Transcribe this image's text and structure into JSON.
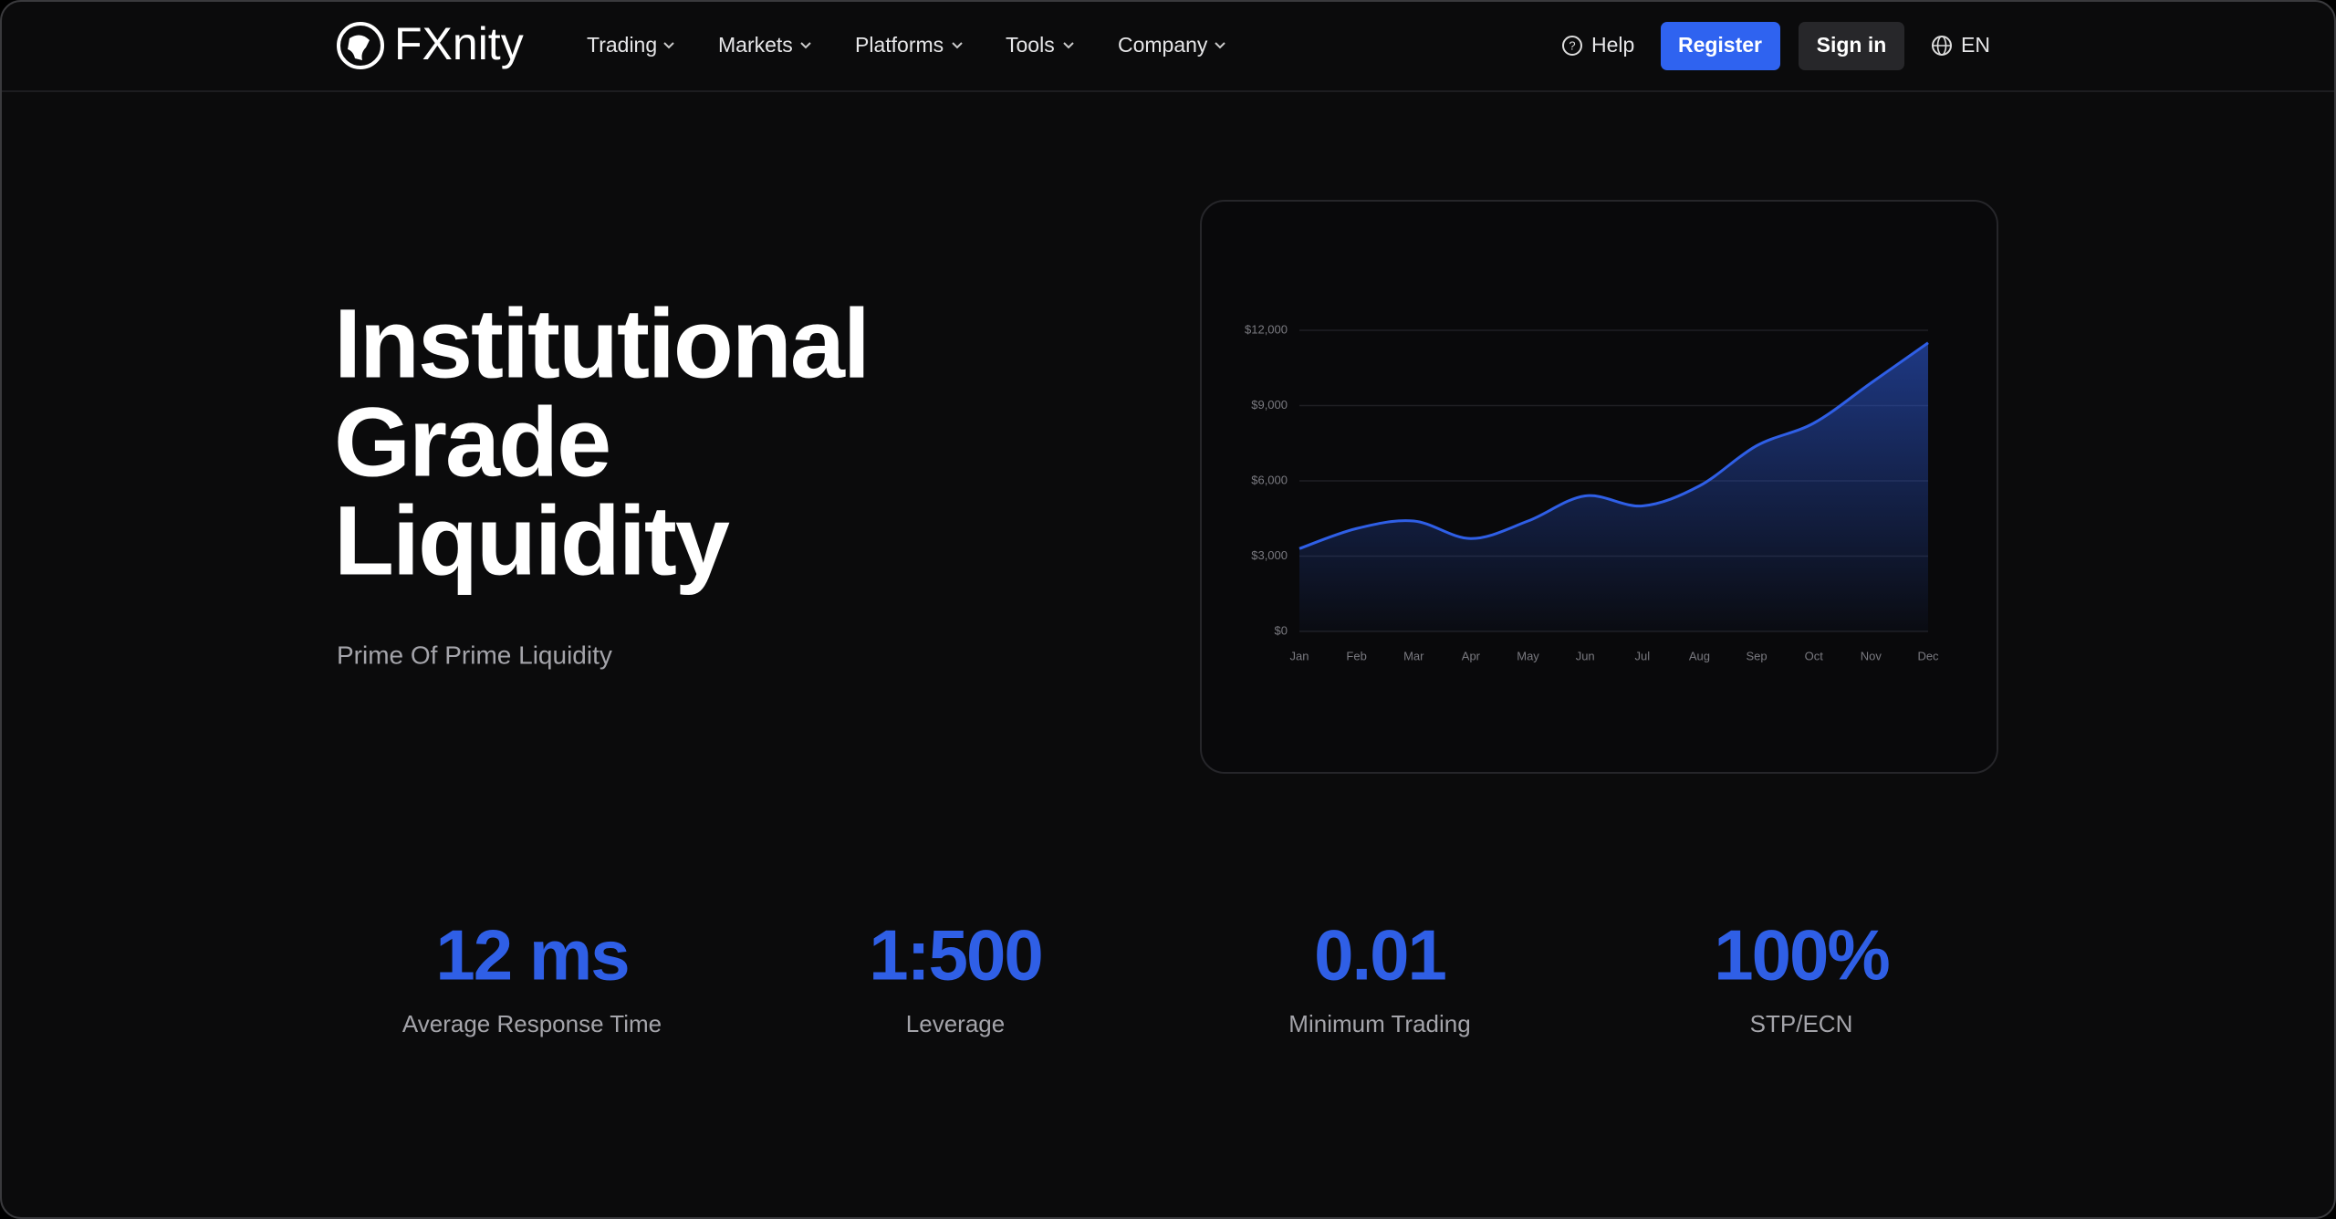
{
  "nav": {
    "brand": "FXnity",
    "menu": [
      "Trading",
      "Markets",
      "Platforms",
      "Tools",
      "Company"
    ],
    "help": "Help",
    "register": "Register",
    "sign_in": "Sign in",
    "language": "EN"
  },
  "hero": {
    "title_lines": [
      "Institutional",
      "Grade",
      "Liquidity"
    ],
    "subtitle": "Prime Of Prime Liquidity"
  },
  "chart_data": {
    "type": "area",
    "categories": [
      "Jan",
      "Feb",
      "Mar",
      "Apr",
      "May",
      "Jun",
      "Jul",
      "Aug",
      "Sep",
      "Oct",
      "Nov",
      "Dec"
    ],
    "values": [
      3300,
      4100,
      4400,
      3700,
      4400,
      5400,
      5000,
      5800,
      7400,
      8300,
      9900,
      11500
    ],
    "color": "#2f5fe6",
    "ylim": [
      0,
      12000
    ],
    "yticks": [
      {
        "value": 0,
        "label": "$0"
      },
      {
        "value": 3000,
        "label": "$3,000"
      },
      {
        "value": 6000,
        "label": "$6,000"
      },
      {
        "value": 9000,
        "label": "$9,000"
      },
      {
        "value": 12000,
        "label": "$12,000"
      }
    ],
    "grid": true
  },
  "stats": [
    {
      "value": "12 ms",
      "label": "Average Response Time"
    },
    {
      "value": "1:500",
      "label": "Leverage"
    },
    {
      "value": "0.01",
      "label": "Minimum Trading"
    },
    {
      "value": "100%",
      "label": "STP/ECN"
    }
  ]
}
